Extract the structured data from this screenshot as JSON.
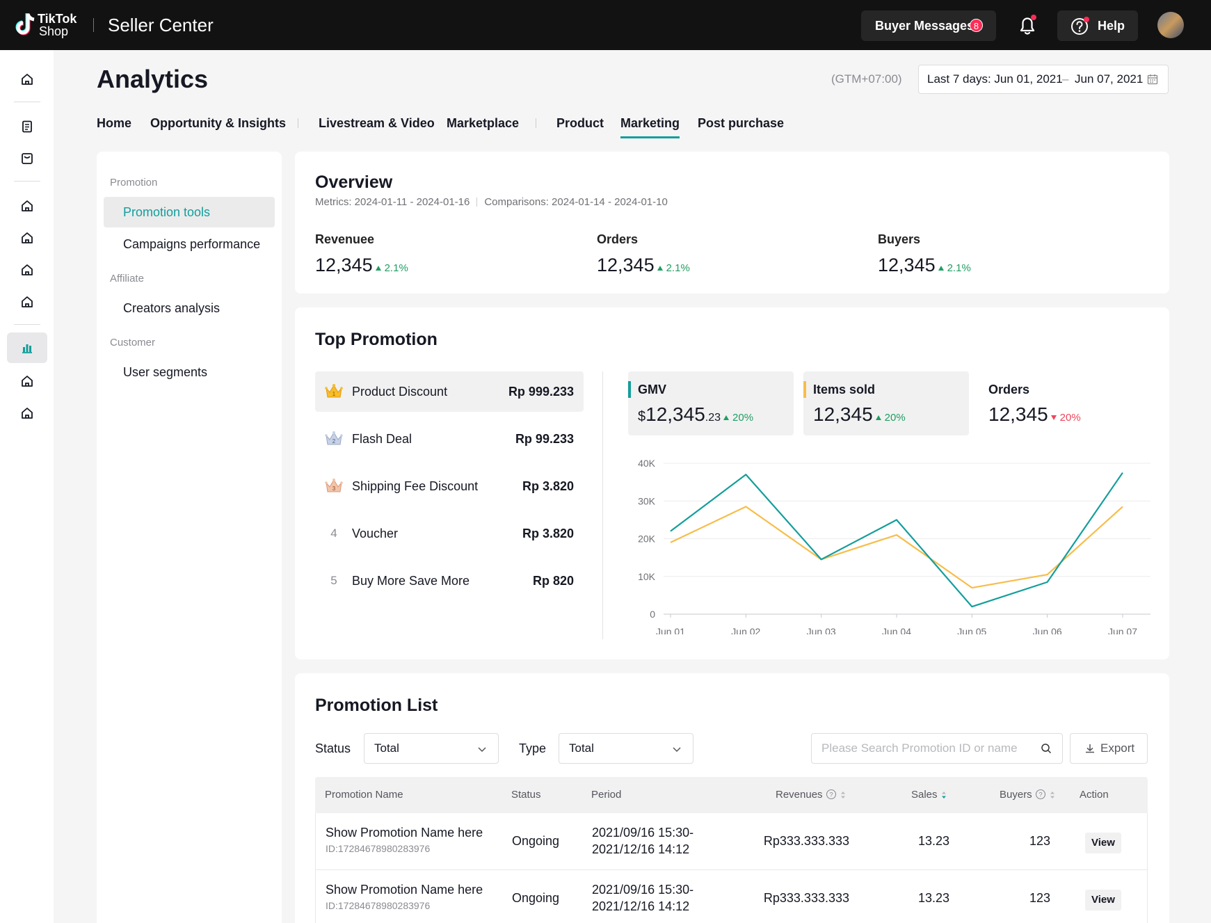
{
  "app": {
    "brand_line1": "TikTok",
    "brand_line2": "Shop",
    "product": "Seller Center"
  },
  "topbar": {
    "buyer_messages_label": "Buyer Messages",
    "buyer_messages_count": "8",
    "help_label": "Help"
  },
  "page": {
    "title": "Analytics",
    "timezone": "(GTM+07:00)",
    "date_range_start": "Last 7 days: Jun 01, 2021",
    "date_range_sep": "–",
    "date_range_end": "Jun 07, 2021"
  },
  "tabs": [
    {
      "label": "Home"
    },
    {
      "label": "Opportunity & Insights"
    },
    {
      "label": "Livestream & Video"
    },
    {
      "label": "Marketplace"
    },
    {
      "label": "Product"
    },
    {
      "label": "Marketing",
      "active": true
    },
    {
      "label": "Post purchase"
    }
  ],
  "sidemenu": {
    "groups": [
      {
        "title": "Promotion",
        "items": [
          {
            "label": "Promotion tools",
            "active": true
          },
          {
            "label": "Campaigns performance"
          }
        ]
      },
      {
        "title": "Affiliate",
        "items": [
          {
            "label": "Creators analysis"
          }
        ]
      },
      {
        "title": "Customer",
        "items": [
          {
            "label": "User segments"
          }
        ]
      }
    ]
  },
  "overview": {
    "title": "Overview",
    "metrics_period": "Metrics: 2024-01-11 - 2024-01-16",
    "comparison_period": "Comparisons: 2024-01-14 - 2024-01-10",
    "metrics": [
      {
        "label": "Revenuee",
        "value": "12,345",
        "change": "2.1%"
      },
      {
        "label": "Orders",
        "value": "12,345",
        "change": "2.1%"
      },
      {
        "label": "Buyers",
        "value": "12,345",
        "change": "2.1%"
      }
    ]
  },
  "top_promotion": {
    "title": "Top Promotion",
    "items": [
      {
        "rank": "1",
        "name": "Product Discount",
        "value": "Rp 999.233",
        "icon": "gold-crown-icon"
      },
      {
        "rank": "2",
        "name": "Flash Deal",
        "value": "Rp 99.233",
        "icon": "silver-crown-icon"
      },
      {
        "rank": "3",
        "name": "Shipping Fee Discount",
        "value": "Rp 3.820",
        "icon": "bronze-crown-icon"
      },
      {
        "rank": "4",
        "name": "Voucher",
        "value": "Rp 3.820"
      },
      {
        "rank": "5",
        "name": "Buy More Save More",
        "value": "Rp 820"
      }
    ],
    "kpis": [
      {
        "label": "GMV",
        "currency": "$",
        "value_main": "12,345",
        "value_dec": ".23",
        "change": "20%",
        "direction": "up",
        "color": "#139e9b"
      },
      {
        "label": "Items sold",
        "value_main": "12,345",
        "change": "20%",
        "direction": "up",
        "color": "#f7bd4a"
      },
      {
        "label": "Orders",
        "value_main": "12,345",
        "change": "20%",
        "direction": "down"
      }
    ]
  },
  "chart_data": {
    "type": "line",
    "categories": [
      "Jun 01",
      "Jun 02",
      "Jun 03",
      "Jun 04",
      "Jun 05",
      "Jun 06",
      "Jun 07"
    ],
    "series": [
      {
        "values": [
          22000,
          37000,
          14500,
          25000,
          2000,
          8500,
          37500
        ],
        "color": "#139e9b"
      },
      {
        "values": [
          19000,
          28500,
          14500,
          21000,
          7000,
          10500,
          28500
        ],
        "color": "#f7bd4a"
      }
    ],
    "ylim": [
      0,
      40000
    ],
    "yticks": [
      0,
      10000,
      20000,
      30000,
      40000
    ],
    "ytick_labels": [
      "0",
      "10K",
      "20K",
      "30K",
      "40K"
    ],
    "grid": true
  },
  "promotion_list": {
    "title": "Promotion List",
    "status_label": "Status",
    "status_value": "Total",
    "type_label": "Type",
    "type_value": "Total",
    "search_placeholder": "Please Search Promotion ID or name",
    "export_label": "Export",
    "columns": {
      "name": "Promotion Name",
      "status": "Status",
      "period": "Period",
      "revenues": "Revenues",
      "sales": "Sales",
      "buyers": "Buyers",
      "action": "Action"
    },
    "rows": [
      {
        "name": "Show Promotion Name here",
        "id": "ID:17284678980283976",
        "status": "Ongoing",
        "period_start": "2021/09/16 15:30-",
        "period_end": "2021/12/16 14:12",
        "revenues": "Rp333.333.333",
        "sales": "13.23",
        "buyers": "123",
        "action": "View"
      },
      {
        "name": "Show Promotion Name here",
        "id": "ID:17284678980283976",
        "status": "Ongoing",
        "period_start": "2021/09/16 15:30-",
        "period_end": "2021/12/16 14:12",
        "revenues": "Rp333.333.333",
        "sales": "13.23",
        "buyers": "123",
        "action": "View"
      }
    ]
  }
}
